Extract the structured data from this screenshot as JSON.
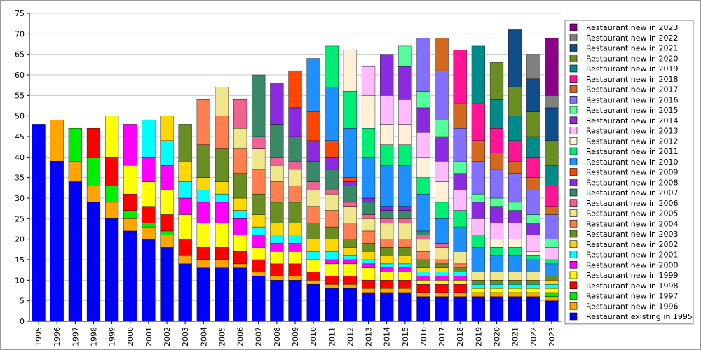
{
  "chart_data": {
    "type": "bar",
    "stacked": true,
    "title": "",
    "xlabel": "",
    "ylabel": "",
    "ylim": [
      0,
      75
    ],
    "yticks": [
      0,
      5,
      10,
      15,
      20,
      25,
      30,
      35,
      40,
      45,
      50,
      55,
      60,
      65,
      70,
      75
    ],
    "grid": "horizontal",
    "legend_position": "right",
    "categories": [
      "1995",
      "1996",
      "1997",
      "1998",
      "1999",
      "2000",
      "2001",
      "2002",
      "2003",
      "2004",
      "2005",
      "2006",
      "2007",
      "2008",
      "2009",
      "2010",
      "2011",
      "2012",
      "2013",
      "2014",
      "2015",
      "2016",
      "2017",
      "2018",
      "2019",
      "2020",
      "2021",
      "2022",
      "2023"
    ],
    "series": [
      {
        "name": "Restaurant existing in 1995",
        "color": "#0000ff",
        "values": [
          48,
          39,
          34,
          29,
          25,
          22,
          20,
          18,
          14,
          13,
          13,
          13,
          11,
          10,
          10,
          9,
          8,
          8,
          7,
          7,
          7,
          6,
          6,
          6,
          6,
          6,
          6,
          6,
          5
        ]
      },
      {
        "name": "Restaurant new in 1996",
        "color": "#ffa500",
        "values": [
          0,
          10,
          5,
          4,
          4,
          3,
          3,
          3,
          2,
          2,
          2,
          1,
          1,
          1,
          1,
          1,
          1,
          1,
          1,
          1,
          1,
          1,
          1,
          1,
          1,
          1,
          1,
          1,
          1
        ]
      },
      {
        "name": "Restaurant new in 1997",
        "color": "#00ee00",
        "values": [
          0,
          0,
          8,
          7,
          4,
          2,
          1,
          1,
          0,
          0,
          0,
          0,
          0,
          0,
          0,
          0,
          0,
          0,
          0,
          0,
          0,
          0,
          0,
          0,
          0,
          0,
          0,
          0,
          1
        ]
      },
      {
        "name": "Restaurant new in 1998",
        "color": "#ff0000",
        "values": [
          0,
          0,
          0,
          7,
          7,
          4,
          4,
          4,
          4,
          3,
          3,
          3,
          3,
          3,
          3,
          2,
          2,
          2,
          2,
          2,
          2,
          2,
          2,
          2,
          0,
          0,
          0,
          0,
          0
        ]
      },
      {
        "name": "Restaurant new in 1999",
        "color": "#ffff00",
        "values": [
          0,
          0,
          0,
          0,
          10,
          7,
          6,
          6,
          6,
          6,
          6,
          4,
          3,
          3,
          3,
          3,
          3,
          3,
          3,
          2,
          2,
          1,
          1,
          1,
          1,
          1,
          1,
          1,
          1
        ]
      },
      {
        "name": "Restaurant new in 2000",
        "color": "#ff00ff",
        "values": [
          0,
          0,
          0,
          0,
          0,
          10,
          6,
          6,
          4,
          5,
          5,
          4,
          3,
          2,
          2,
          0,
          1,
          1,
          1,
          1,
          1,
          1,
          1,
          1,
          0,
          0,
          0,
          0,
          0
        ]
      },
      {
        "name": "Restaurant new in 2001",
        "color": "#00ffff",
        "values": [
          0,
          0,
          0,
          0,
          0,
          0,
          9,
          6,
          4,
          3,
          2,
          2,
          2,
          2,
          2,
          2,
          2,
          1,
          1,
          1,
          1,
          1,
          1,
          1,
          1,
          1,
          1,
          1,
          1
        ]
      },
      {
        "name": "Restaurant new in 2002",
        "color": "#ffd700",
        "values": [
          0,
          0,
          0,
          0,
          0,
          0,
          0,
          6,
          5,
          3,
          3,
          3,
          3,
          3,
          3,
          3,
          3,
          2,
          2,
          2,
          2,
          1,
          1,
          0,
          0,
          0,
          0,
          0,
          1
        ]
      },
      {
        "name": "Restaurant new in 2003",
        "color": "#6b8e23",
        "values": [
          0,
          0,
          0,
          0,
          0,
          0,
          0,
          0,
          9,
          8,
          8,
          6,
          5,
          5,
          5,
          4,
          3,
          2,
          2,
          2,
          2,
          2,
          1,
          1,
          1,
          1,
          1,
          1,
          1
        ]
      },
      {
        "name": "Restaurant new in 2004",
        "color": "#ff7f50",
        "values": [
          0,
          0,
          0,
          0,
          0,
          0,
          0,
          0,
          0,
          11,
          8,
          6,
          6,
          5,
          4,
          4,
          4,
          4,
          3,
          2,
          2,
          2,
          1,
          1,
          0,
          0,
          0,
          0,
          0
        ]
      },
      {
        "name": "Restaurant new in 2005",
        "color": "#f0e68c",
        "values": [
          0,
          0,
          0,
          0,
          0,
          0,
          0,
          0,
          0,
          0,
          7,
          5,
          5,
          4,
          4,
          4,
          4,
          4,
          3,
          4,
          4,
          3,
          3,
          3,
          2,
          2,
          2,
          2,
          0
        ]
      },
      {
        "name": "Restaurant new in 2006",
        "color": "#f06292",
        "values": [
          0,
          0,
          0,
          0,
          0,
          0,
          0,
          0,
          0,
          0,
          0,
          7,
          3,
          2,
          2,
          2,
          1,
          1,
          1,
          1,
          1,
          1,
          1,
          0,
          0,
          0,
          0,
          0,
          0
        ]
      },
      {
        "name": "Restaurant new in 2007",
        "color": "#3a8a6a",
        "values": [
          0,
          0,
          0,
          0,
          0,
          0,
          0,
          0,
          0,
          0,
          0,
          0,
          15,
          8,
          6,
          5,
          5,
          4,
          3,
          2,
          2,
          1,
          0,
          0,
          0,
          0,
          0,
          0,
          0
        ]
      },
      {
        "name": "Restaurant new in 2008",
        "color": "#8a2be2",
        "values": [
          0,
          0,
          0,
          0,
          0,
          0,
          0,
          0,
          0,
          0,
          0,
          0,
          0,
          10,
          7,
          5,
          3,
          1,
          1,
          1,
          1,
          0,
          0,
          0,
          0,
          0,
          0,
          0,
          0
        ]
      },
      {
        "name": "Restaurant new in 2009",
        "color": "#ff4500",
        "values": [
          0,
          0,
          0,
          0,
          0,
          0,
          0,
          0,
          0,
          0,
          0,
          0,
          0,
          0,
          9,
          7,
          4,
          1,
          0,
          0,
          0,
          0,
          0,
          0,
          0,
          0,
          0,
          0,
          0
        ]
      },
      {
        "name": "Restaurant new in 2010",
        "color": "#1e90ff",
        "values": [
          0,
          0,
          0,
          0,
          0,
          0,
          0,
          0,
          0,
          0,
          0,
          0,
          0,
          0,
          0,
          13,
          13,
          12,
          10,
          10,
          10,
          9,
          6,
          6,
          6,
          4,
          4,
          3,
          3
        ]
      },
      {
        "name": "Restaurant new in 2011",
        "color": "#00ee76",
        "values": [
          0,
          0,
          0,
          0,
          0,
          0,
          0,
          0,
          0,
          0,
          0,
          0,
          0,
          0,
          0,
          0,
          10,
          9,
          7,
          5,
          5,
          4,
          4,
          4,
          3,
          2,
          2,
          1,
          1
        ]
      },
      {
        "name": "Restaurant new in 2012",
        "color": "#fff0d8",
        "values": [
          0,
          0,
          0,
          0,
          0,
          0,
          0,
          0,
          0,
          0,
          0,
          0,
          0,
          0,
          0,
          0,
          0,
          10,
          8,
          5,
          5,
          5,
          5,
          0,
          0,
          2,
          2,
          1,
          0
        ]
      },
      {
        "name": "Restaurant new in 2013",
        "color": "#ffbbff",
        "values": [
          0,
          0,
          0,
          0,
          0,
          0,
          0,
          0,
          0,
          0,
          0,
          0,
          0,
          0,
          0,
          0,
          0,
          0,
          7,
          7,
          6,
          6,
          5,
          5,
          4,
          4,
          4,
          4,
          3
        ]
      },
      {
        "name": "Restaurant new in 2014",
        "color": "#8a2be2",
        "values": [
          0,
          0,
          0,
          0,
          0,
          0,
          0,
          0,
          0,
          0,
          0,
          0,
          0,
          0,
          0,
          0,
          0,
          0,
          0,
          10,
          8,
          6,
          6,
          4,
          4,
          4,
          3,
          3,
          0
        ]
      },
      {
        "name": "Restaurant new in 2015",
        "color": "#55ff99",
        "values": [
          0,
          0,
          0,
          0,
          0,
          0,
          0,
          0,
          0,
          0,
          0,
          0,
          0,
          0,
          0,
          0,
          0,
          0,
          0,
          0,
          5,
          4,
          4,
          3,
          2,
          2,
          2,
          2,
          2
        ]
      },
      {
        "name": "Restaurant new in 2016",
        "color": "#8470ff",
        "values": [
          0,
          0,
          0,
          0,
          0,
          0,
          0,
          0,
          0,
          0,
          0,
          0,
          0,
          0,
          0,
          0,
          0,
          0,
          0,
          0,
          0,
          13,
          12,
          8,
          8,
          7,
          7,
          6,
          6
        ]
      },
      {
        "name": "Restaurant new in 2017",
        "color": "#d2691e",
        "values": [
          0,
          0,
          0,
          0,
          0,
          0,
          0,
          0,
          0,
          0,
          0,
          0,
          0,
          0,
          0,
          0,
          0,
          0,
          0,
          0,
          0,
          0,
          8,
          6,
          5,
          4,
          3,
          3,
          2
        ]
      },
      {
        "name": "Restaurant new in 2018",
        "color": "#ff1493",
        "values": [
          0,
          0,
          0,
          0,
          0,
          0,
          0,
          0,
          0,
          0,
          0,
          0,
          0,
          0,
          0,
          0,
          0,
          0,
          0,
          0,
          0,
          0,
          0,
          13,
          9,
          6,
          5,
          5,
          5
        ]
      },
      {
        "name": "Restaurant new in 2019",
        "color": "#008b8b",
        "values": [
          0,
          0,
          0,
          0,
          0,
          0,
          0,
          0,
          0,
          0,
          0,
          0,
          0,
          0,
          0,
          0,
          0,
          0,
          0,
          0,
          0,
          0,
          0,
          0,
          14,
          7,
          6,
          5,
          5
        ]
      },
      {
        "name": "Restaurant new in 2020",
        "color": "#6b8e23",
        "values": [
          0,
          0,
          0,
          0,
          0,
          0,
          0,
          0,
          0,
          0,
          0,
          0,
          0,
          0,
          0,
          0,
          0,
          0,
          0,
          0,
          0,
          0,
          0,
          0,
          0,
          9,
          7,
          6,
          6
        ]
      },
      {
        "name": "Restaurant new in 2021",
        "color": "#104e8b",
        "values": [
          0,
          0,
          0,
          0,
          0,
          0,
          0,
          0,
          0,
          0,
          0,
          0,
          0,
          0,
          0,
          0,
          0,
          0,
          0,
          0,
          0,
          0,
          0,
          0,
          0,
          0,
          14,
          8,
          8
        ]
      },
      {
        "name": "Restaurant new in 2022",
        "color": "#808080",
        "values": [
          0,
          0,
          0,
          0,
          0,
          0,
          0,
          0,
          0,
          0,
          0,
          0,
          0,
          0,
          0,
          0,
          0,
          0,
          0,
          0,
          0,
          0,
          0,
          0,
          0,
          0,
          0,
          6,
          3
        ]
      },
      {
        "name": "Restaurant new in 2023",
        "color": "#8b008b",
        "values": [
          0,
          0,
          0,
          0,
          0,
          0,
          0,
          0,
          0,
          0,
          0,
          0,
          0,
          0,
          0,
          0,
          0,
          0,
          0,
          0,
          0,
          0,
          0,
          0,
          0,
          0,
          0,
          0,
          14
        ]
      }
    ]
  }
}
